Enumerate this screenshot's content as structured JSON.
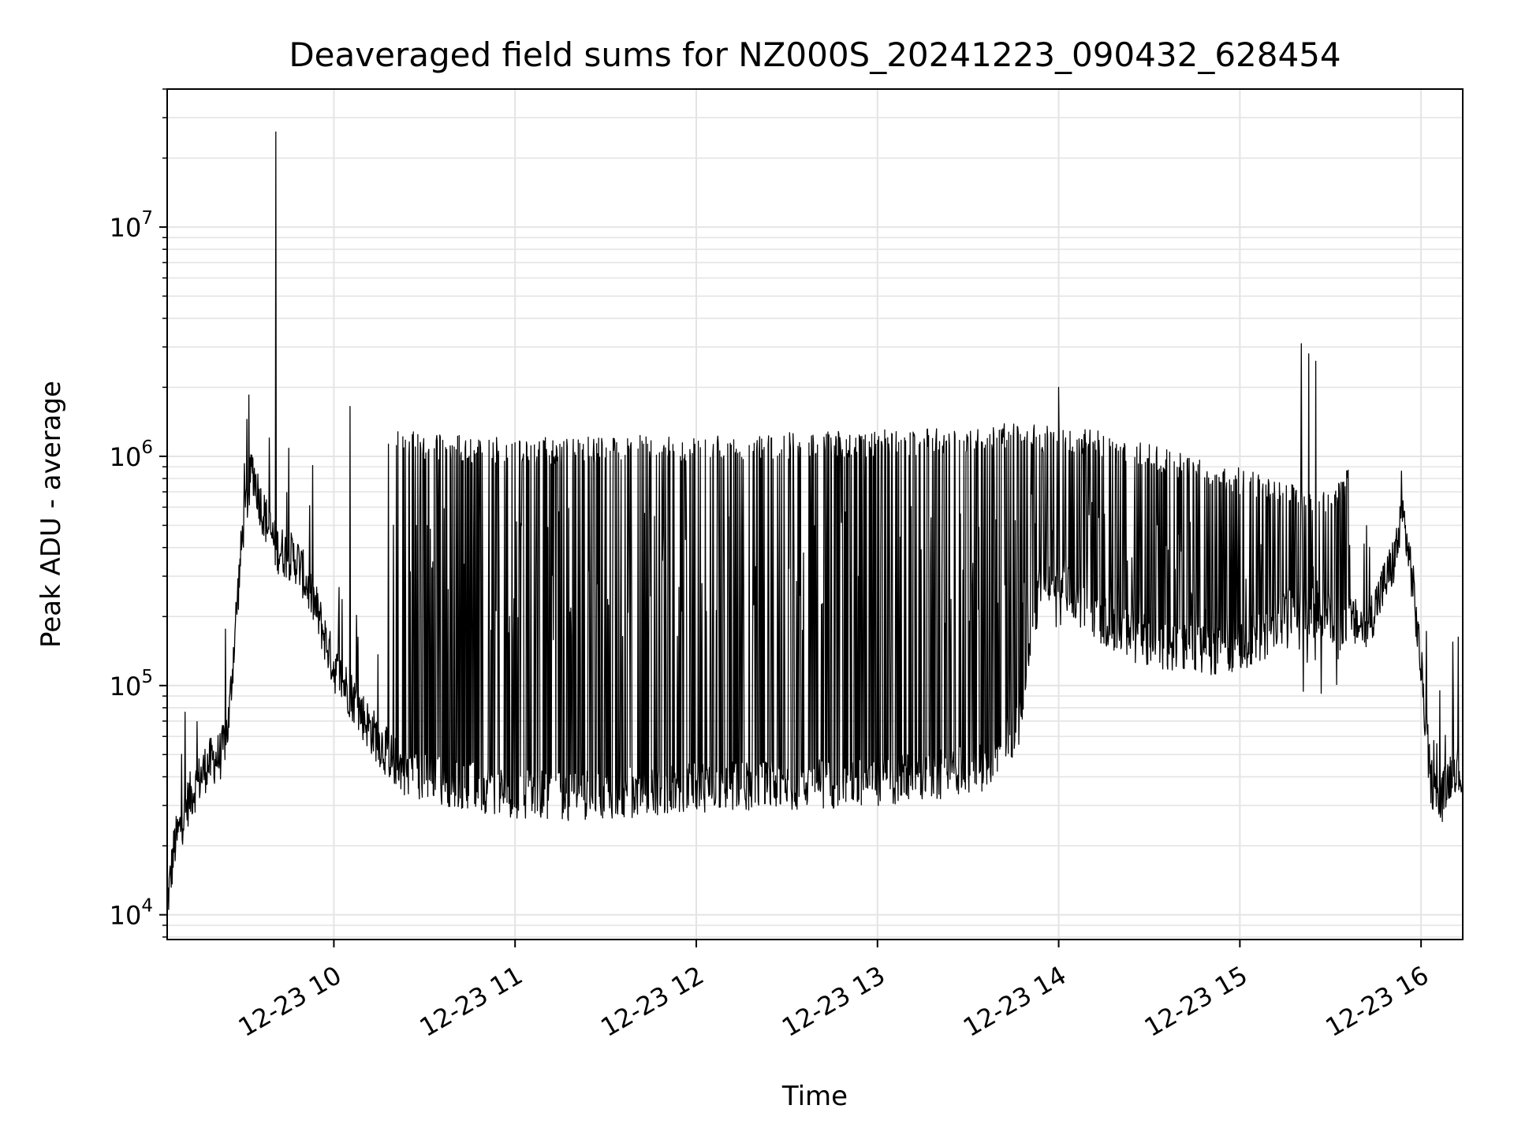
{
  "chart_data": {
    "type": "line",
    "title": "Deaveraged field sums for NZ000S_20241223_090432_628454",
    "xlabel": "Time",
    "ylabel": "Peak ADU - average",
    "yscale": "log",
    "grid": true,
    "x_unit": "hour of 2024-12-23",
    "xlim": [
      9.08,
      16.23
    ],
    "ylim": [
      7800,
      40000000
    ],
    "xticks": [
      {
        "x": 10,
        "label": "12-23 10"
      },
      {
        "x": 11,
        "label": "12-23 11"
      },
      {
        "x": 12,
        "label": "12-23 12"
      },
      {
        "x": 13,
        "label": "12-23 13"
      },
      {
        "x": 14,
        "label": "12-23 14"
      },
      {
        "x": 15,
        "label": "12-23 15"
      },
      {
        "x": 16,
        "label": "12-23 16"
      }
    ],
    "yticks": [
      {
        "y": 10000,
        "base": "10",
        "exp": "4"
      },
      {
        "y": 100000,
        "base": "10",
        "exp": "5"
      },
      {
        "y": 1000000,
        "base": "10",
        "exp": "6"
      },
      {
        "y": 10000000,
        "base": "10",
        "exp": "7"
      }
    ],
    "series": [
      {
        "color": "#000000",
        "baseline_points": [
          [
            9.08,
            11000
          ],
          [
            9.12,
            20000
          ],
          [
            9.2,
            32000
          ],
          [
            9.3,
            45000
          ],
          [
            9.38,
            50000
          ],
          [
            9.42,
            70000
          ],
          [
            9.46,
            200000
          ],
          [
            9.5,
            500000
          ],
          [
            9.55,
            900000
          ],
          [
            9.6,
            600000
          ],
          [
            9.68,
            400000
          ],
          [
            9.8,
            350000
          ],
          [
            9.9,
            220000
          ],
          [
            10.0,
            120000
          ],
          [
            10.1,
            90000
          ],
          [
            10.2,
            65000
          ],
          [
            10.3,
            50000
          ],
          [
            10.4,
            42000
          ],
          [
            10.5,
            40000
          ],
          [
            10.8,
            36000
          ],
          [
            11.0,
            34000
          ],
          [
            11.3,
            33000
          ],
          [
            11.6,
            34000
          ],
          [
            12.0,
            36000
          ],
          [
            12.5,
            37000
          ],
          [
            13.0,
            38000
          ],
          [
            13.3,
            40000
          ],
          [
            13.6,
            45000
          ],
          [
            13.8,
            70000
          ],
          [
            13.9,
            300000
          ],
          [
            14.0,
            300000
          ],
          [
            14.2,
            200000
          ],
          [
            14.5,
            150000
          ],
          [
            14.9,
            140000
          ],
          [
            15.1,
            160000
          ],
          [
            15.3,
            220000
          ],
          [
            15.5,
            200000
          ],
          [
            15.7,
            180000
          ],
          [
            15.85,
            350000
          ],
          [
            15.9,
            550000
          ],
          [
            15.95,
            300000
          ],
          [
            16.0,
            120000
          ],
          [
            16.05,
            40000
          ],
          [
            16.1,
            30000
          ],
          [
            16.18,
            45000
          ],
          [
            16.23,
            40000
          ]
        ],
        "envelope_points": [
          [
            10.3,
            1300000
          ],
          [
            11.0,
            1200000
          ],
          [
            12.0,
            1250000
          ],
          [
            13.0,
            1300000
          ],
          [
            13.8,
            1400000
          ],
          [
            14.2,
            1300000
          ],
          [
            14.8,
            1000000
          ],
          [
            15.2,
            800000
          ],
          [
            15.5,
            700000
          ],
          [
            15.6,
            900000
          ]
        ],
        "spikes": [
          {
            "x": 9.68,
            "y": 26000000
          },
          {
            "x": 15.34,
            "y": 3100000
          },
          {
            "x": 15.38,
            "y": 2800000
          },
          {
            "x": 15.42,
            "y": 2600000
          },
          {
            "x": 14.0,
            "y": 2000000
          },
          {
            "x": 10.09,
            "y": 1650000
          },
          {
            "x": 9.52,
            "y": 1450000
          }
        ]
      }
    ]
  }
}
